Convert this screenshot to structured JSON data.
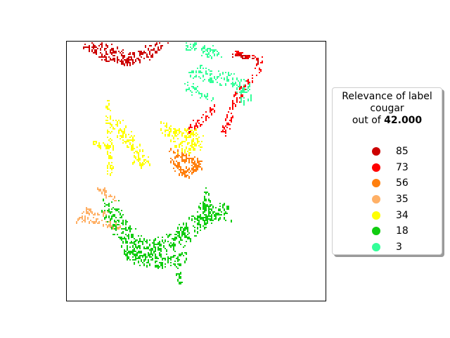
{
  "chart_data": {
    "type": "scatter",
    "title": "",
    "xlabel": "",
    "ylabel": "",
    "grid": false,
    "axes_ticks": false,
    "legend": {
      "placement": "right",
      "title_line1": "Relevance of label",
      "title_line2": "cougar",
      "title_line3_prefix": "out of ",
      "title_line3_value": "42.000"
    },
    "series": [
      {
        "label": "85",
        "color": "#cc0000",
        "region": "top-left whisker band"
      },
      {
        "label": "73",
        "color": "#ff0000",
        "region": "right ear edge"
      },
      {
        "label": "56",
        "color": "#ff7f0e",
        "region": "right eye"
      },
      {
        "label": "35",
        "color": "#ffb066",
        "region": "left whiskers"
      },
      {
        "label": "34",
        "color": "#ffff00",
        "region": "left eye and forehead"
      },
      {
        "label": "18",
        "color": "#11cc11",
        "region": "muzzle and mouth"
      },
      {
        "label": "3",
        "color": "#33ff99",
        "region": "right ear"
      }
    ]
  }
}
